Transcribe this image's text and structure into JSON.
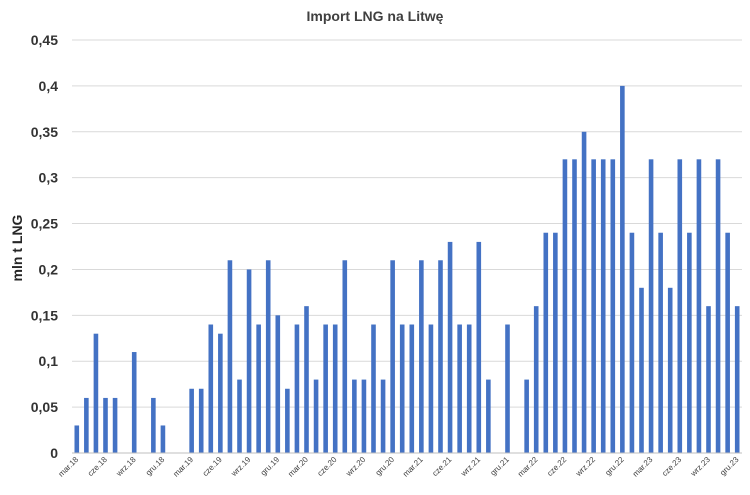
{
  "chart_data": {
    "type": "bar",
    "title": "Import LNG na Litwę",
    "xlabel": "",
    "ylabel": "mln t LNG",
    "ylim": [
      0,
      0.45
    ],
    "ytick_labels": [
      "0",
      "0,05",
      "0,1",
      "0,15",
      "0,2",
      "0,25",
      "0,3",
      "0,35",
      "0,4",
      "0,45"
    ],
    "grid": true,
    "legend": "none",
    "bar_color": "#4472c4",
    "categories": [
      "mar.18",
      "kwi.18",
      "maj.18",
      "cze.18",
      "lip.18",
      "sie.18",
      "wrz.18",
      "paź.18",
      "lis.18",
      "gru.18",
      "sty.19",
      "lut.19",
      "mar.19",
      "kwi.19",
      "maj.19",
      "cze.19",
      "lip.19",
      "sie.19",
      "wrz.19",
      "paź.19",
      "lis.19",
      "gru.19",
      "sty.20",
      "lut.20",
      "mar.20",
      "kwi.20",
      "maj.20",
      "cze.20",
      "lip.20",
      "sie.20",
      "wrz.20",
      "paź.20",
      "lis.20",
      "gru.20",
      "sty.21",
      "lut.21",
      "mar.21",
      "kwi.21",
      "maj.21",
      "cze.21",
      "lip.21",
      "sie.21",
      "wrz.21",
      "paź.21",
      "lis.21",
      "gru.21",
      "sty.22",
      "lut.22",
      "mar.22",
      "kwi.22",
      "maj.22",
      "cze.22",
      "lip.22",
      "sie.22",
      "wrz.22",
      "paź.22",
      "lis.22",
      "gru.22",
      "sty.23",
      "lut.23",
      "mar.23",
      "kwi.23",
      "maj.23",
      "cze.23",
      "lip.23",
      "sie.23",
      "wrz.23",
      "paź.23",
      "lis.23",
      "gru.23"
    ],
    "shown_tick_labels": [
      "mar.18",
      "cze.18",
      "wrz.18",
      "gru.18",
      "mar.19",
      "cze.19",
      "wrz.19",
      "gru.19",
      "mar.20",
      "cze.20",
      "wrz.20",
      "gru.20",
      "mar.21",
      "cze.21",
      "wrz.21",
      "gru.21",
      "mar.22",
      "cze.22",
      "wrz.22",
      "gru.22",
      "mar.23",
      "cze.23",
      "wrz.23",
      "gru.23"
    ],
    "values": [
      0.03,
      0.06,
      0.13,
      0.06,
      0.06,
      0,
      0.11,
      0,
      0.06,
      0.03,
      0,
      0,
      0.07,
      0.07,
      0.14,
      0.13,
      0.21,
      0.08,
      0.2,
      0.14,
      0.21,
      0.15,
      0.07,
      0.14,
      0.16,
      0.08,
      0.14,
      0.14,
      0.21,
      0.08,
      0.08,
      0.14,
      0.08,
      0.21,
      0.14,
      0.14,
      0.21,
      0.14,
      0.21,
      0.23,
      0.14,
      0.14,
      0.23,
      0.08,
      0,
      0.14,
      0,
      0.08,
      0.16,
      0.24,
      0.24,
      0.32,
      0.32,
      0.35,
      0.32,
      0.32,
      0.32,
      0.4,
      0.24,
      0.18,
      0.32,
      0.24,
      0.18,
      0.32,
      0.24,
      0.32,
      0.16,
      0.32,
      0.24,
      0.16
    ]
  }
}
